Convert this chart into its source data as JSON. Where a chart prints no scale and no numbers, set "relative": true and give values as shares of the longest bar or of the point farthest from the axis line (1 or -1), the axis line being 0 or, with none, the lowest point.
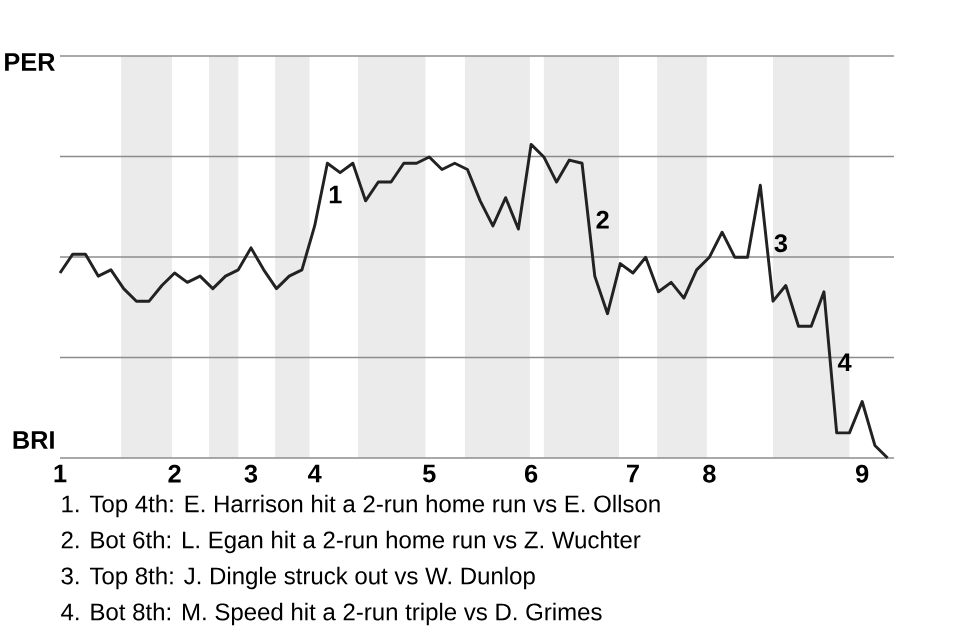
{
  "chart_data": {
    "type": "line",
    "color": "#222222",
    "relative": true,
    "categories": [
      "1",
      null,
      null,
      null,
      null,
      null,
      null,
      null,
      null,
      "2",
      null,
      null,
      null,
      null,
      null,
      "3",
      null,
      null,
      null,
      null,
      "4",
      null,
      null,
      null,
      null,
      null,
      null,
      null,
      null,
      "5",
      null,
      null,
      null,
      null,
      null,
      null,
      null,
      "6",
      null,
      null,
      null,
      null,
      null,
      null,
      null,
      "7",
      null,
      null,
      null,
      null,
      null,
      "8",
      null,
      null,
      null,
      null,
      null,
      null,
      null,
      null,
      null,
      null,
      null,
      "9",
      null,
      null
    ],
    "values": [
      0.59,
      0.65,
      0.65,
      0.58,
      0.6,
      0.54,
      0.5,
      0.5,
      0.55,
      0.59,
      0.56,
      0.58,
      0.54,
      0.58,
      0.6,
      0.67,
      0.6,
      0.54,
      0.58,
      0.6,
      0.74,
      0.94,
      0.91,
      0.94,
      0.82,
      0.88,
      0.88,
      0.94,
      0.94,
      0.96,
      0.92,
      0.94,
      0.92,
      0.82,
      0.74,
      0.83,
      0.73,
      1,
      0.96,
      0.88,
      0.95,
      0.94,
      0.58,
      0.46,
      0.62,
      0.59,
      0.64,
      0.53,
      0.56,
      0.51,
      0.6,
      0.64,
      0.72,
      0.64,
      0.64,
      0.87,
      0.5,
      0.55,
      0.42,
      0.42,
      0.53,
      0.08,
      0.08,
      0.18,
      0.04,
      0
    ],
    "grid": "y",
    "annotations": [
      "PER",
      "BRI",
      "1",
      "2",
      "3",
      "4",
      "1. Top 4th: E. Harrison hit a 2-run home run vs E. Ollson",
      "2. Bot 6th: L. Egan hit a 2-run home run vs Z. Wuchter",
      "3. Top 8th: J. Dingle struck out vs W. Dunlop",
      "4. Bot 8th: M. Speed hit a 2-run triple vs D. Grimes"
    ]
  }
}
